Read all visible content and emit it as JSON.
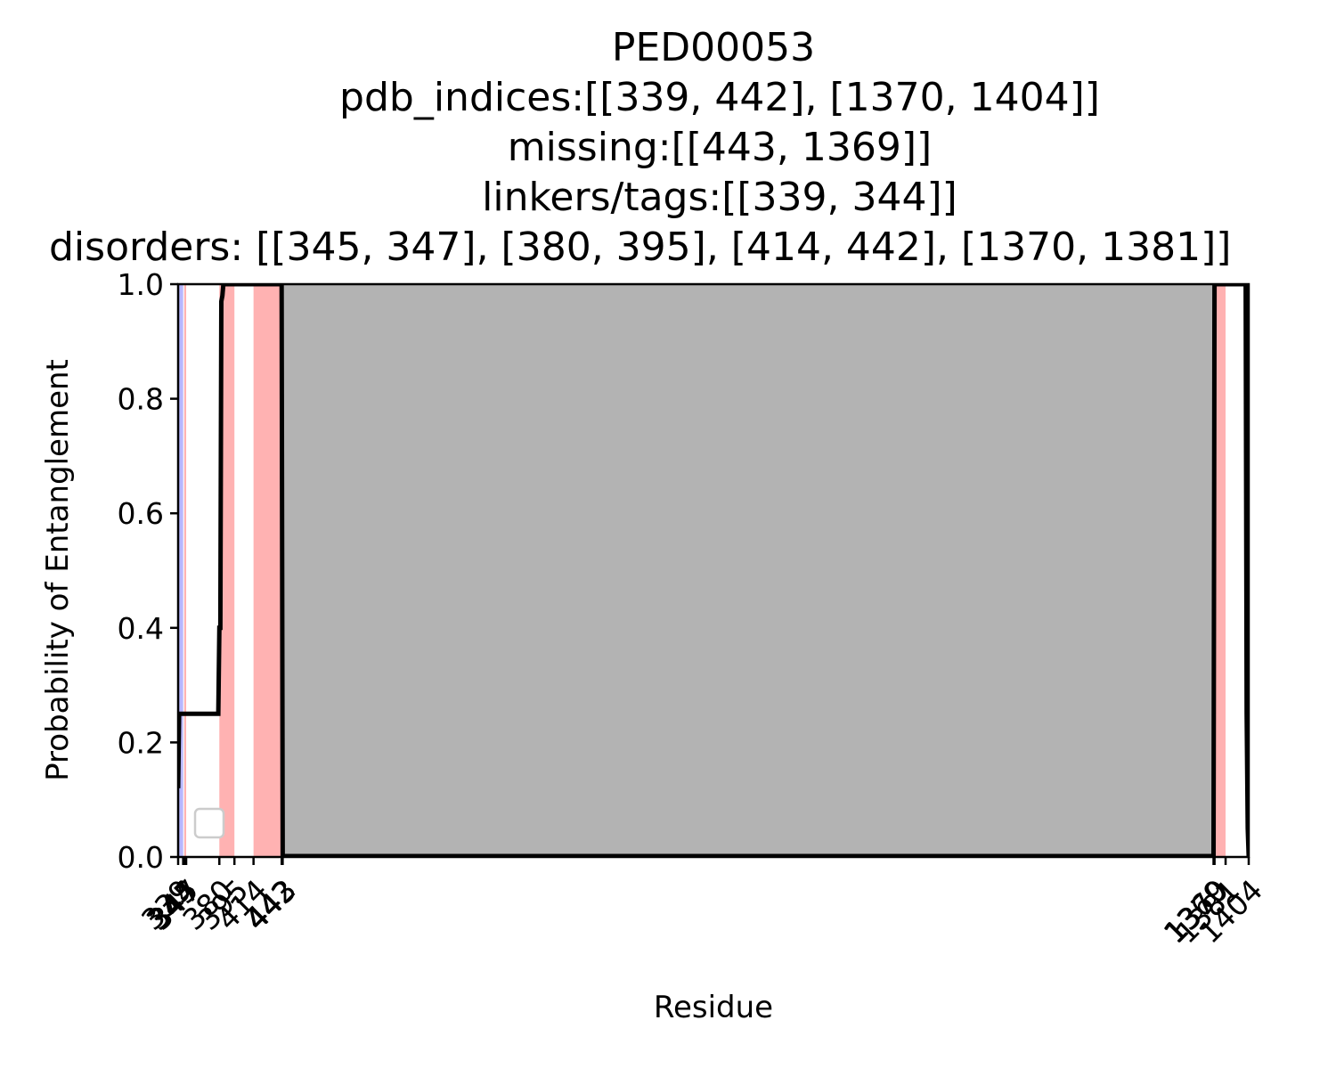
{
  "chart_data": {
    "type": "line",
    "title_lines": [
      "PED00053",
      "pdb_indices:[[339, 442], [1370, 1404]]",
      "missing:[[443, 1369]]",
      "linkers/tags:[[339, 344]]",
      "disorders: [[345, 347], [380, 395], [414, 442], [1370, 1381]]"
    ],
    "xlabel": "Residue",
    "ylabel": "Probability of Entanglement",
    "xlim": [
      339,
      1404
    ],
    "ylim": [
      0.0,
      1.0
    ],
    "y_ticks": [
      0.0,
      0.2,
      0.4,
      0.6,
      0.8,
      1.0
    ],
    "y_tick_labels": [
      "0.0",
      "0.2",
      "0.4",
      "0.6",
      "0.8",
      "1.0"
    ],
    "x_ticks": [
      339,
      344,
      345,
      347,
      380,
      395,
      414,
      442,
      443,
      1369,
      1370,
      1381,
      1404
    ],
    "x_tick_labels": [
      "339",
      "344",
      "345",
      "347",
      "380",
      "395",
      "414",
      "442",
      "443",
      "1369",
      "1370",
      "1381",
      "1404"
    ],
    "shaded_regions": [
      {
        "kind": "linker",
        "start": 339,
        "end": 344,
        "color": "#7b7bff",
        "opacity": 0.55
      },
      {
        "kind": "disorder",
        "start": 345,
        "end": 347,
        "color": "#ff0000",
        "opacity": 0.3
      },
      {
        "kind": "disorder",
        "start": 380,
        "end": 395,
        "color": "#ff0000",
        "opacity": 0.3
      },
      {
        "kind": "disorder",
        "start": 414,
        "end": 442,
        "color": "#ff0000",
        "opacity": 0.3
      },
      {
        "kind": "disorder",
        "start": 1370,
        "end": 1381,
        "color": "#ff0000",
        "opacity": 0.3
      },
      {
        "kind": "missing",
        "start": 443,
        "end": 1369,
        "color": "#b3b3b3",
        "opacity": 1.0
      }
    ],
    "series": [
      {
        "color": "#000000",
        "x": [
          339,
          340,
          341,
          379,
          380,
          381,
          382,
          383,
          384,
          385,
          390,
          395,
          442,
          443,
          1369,
          1370,
          1371,
          1400,
          1401,
          1402,
          1403,
          1404
        ],
        "y": [
          0.12,
          0.25,
          0.25,
          0.25,
          0.4,
          0.4,
          0.97,
          0.98,
          1.0,
          1.0,
          1.0,
          1.0,
          1.0,
          0.0,
          0.0,
          1.0,
          1.0,
          1.0,
          1.0,
          0.25,
          0.05,
          0.0
        ]
      }
    ],
    "legend": {
      "placement": "lower left",
      "entries": []
    },
    "grid": false
  }
}
